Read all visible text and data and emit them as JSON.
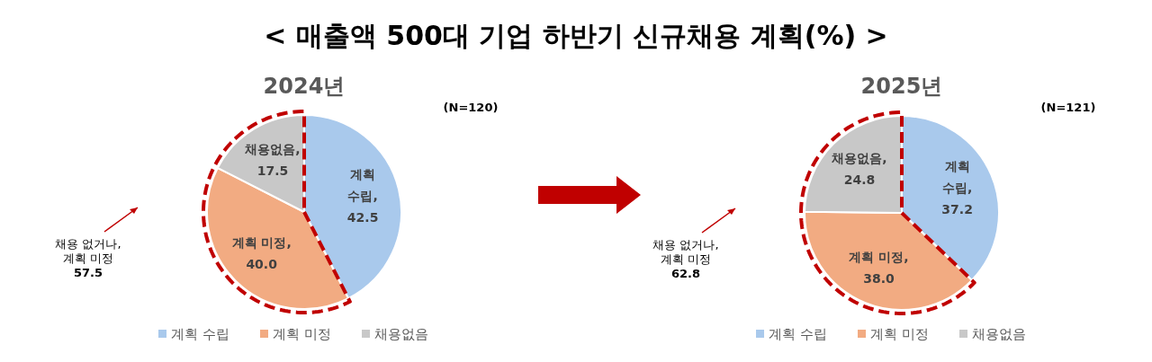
{
  "chart_data": [
    {
      "type": "pie",
      "title": "< 매출액 500대 기업 하반기 신규채용 계획(%) >",
      "subtitle": "2024년",
      "categories": [
        "계획 수립",
        "계획 미정",
        "채용없음"
      ],
      "values": [
        42.5,
        40.0,
        17.5
      ],
      "value_labels": [
        "계획\n수립,\n42.5",
        "계획 미정,\n40.0",
        "채용없음,\n17.5"
      ],
      "colors": [
        "#a9c9ec",
        "#f2ab82",
        "#c8c8c8"
      ],
      "annotations": [
        "(N=120)",
        "채용 없거나,\n계획 미정\n57.5"
      ],
      "legend": "bottom"
    },
    {
      "type": "pie",
      "subtitle": "2025년",
      "categories": [
        "계획 수립",
        "계획 미정",
        "채용없음"
      ],
      "values": [
        37.2,
        38.0,
        24.8
      ],
      "value_labels": [
        "계획\n수립,\n37.2",
        "계획 미정,\n38.0",
        "채용없음,\n24.8"
      ],
      "colors": [
        "#a9c9ec",
        "#f2ab82",
        "#c8c8c8"
      ],
      "annotations": [
        "(N=121)",
        "채용 없거나,\n계획 미정\n62.8"
      ],
      "legend": "bottom"
    }
  ]
}
